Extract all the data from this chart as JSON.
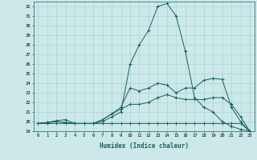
{
  "xlabel": "Humidex (Indice chaleur)",
  "xlim": [
    -0.5,
    23.5
  ],
  "ylim": [
    19,
    32.5
  ],
  "yticks": [
    19,
    20,
    21,
    22,
    23,
    24,
    25,
    26,
    27,
    28,
    29,
    30,
    31,
    32
  ],
  "xticks": [
    0,
    1,
    2,
    3,
    4,
    5,
    6,
    7,
    8,
    9,
    10,
    11,
    12,
    13,
    14,
    15,
    16,
    17,
    18,
    19,
    20,
    21,
    22,
    23
  ],
  "bg_color": "#cce8e8",
  "grid_color": "#aad4d4",
  "line_color": "#1a6060",
  "series": [
    [
      19.8,
      19.9,
      20.1,
      20.2,
      19.8,
      19.8,
      19.8,
      20.0,
      20.5,
      21.0,
      26.0,
      28.0,
      29.5,
      32.0,
      32.3,
      31.0,
      27.3,
      22.5,
      21.5,
      21.0,
      20.0,
      19.5,
      19.2,
      19.0
    ],
    [
      19.8,
      19.9,
      20.0,
      19.9,
      19.8,
      19.8,
      19.8,
      20.2,
      20.8,
      21.5,
      23.5,
      23.2,
      23.5,
      24.0,
      23.8,
      23.0,
      23.5,
      23.5,
      24.3,
      24.5,
      24.4,
      21.5,
      20.0,
      19.0
    ],
    [
      19.8,
      19.9,
      20.0,
      19.9,
      19.8,
      19.8,
      19.8,
      20.2,
      20.8,
      21.3,
      21.8,
      21.8,
      22.0,
      22.5,
      22.8,
      22.5,
      22.3,
      22.3,
      22.3,
      22.5,
      22.5,
      21.8,
      20.5,
      19.0
    ],
    [
      19.8,
      19.8,
      19.8,
      19.8,
      19.8,
      19.8,
      19.8,
      19.8,
      19.8,
      19.8,
      19.8,
      19.8,
      19.8,
      19.8,
      19.8,
      19.8,
      19.8,
      19.8,
      19.8,
      19.8,
      19.8,
      19.8,
      19.8,
      19.0
    ]
  ]
}
